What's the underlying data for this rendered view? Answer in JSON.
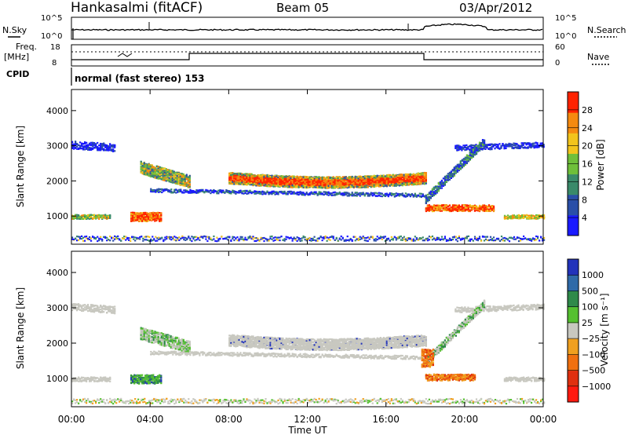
{
  "header": {
    "station": "Hankasalmi (fitACF)",
    "beam": "Beam 05",
    "date": "03/Apr/2012"
  },
  "noise_panel": {
    "left_label": "N.Sky",
    "right_label": "N.Search",
    "left_ticks": [
      "10^5",
      "10^0"
    ],
    "right_ticks": [
      "10^5",
      "10^0"
    ]
  },
  "freq_panel": {
    "left_label_1": "Freq.",
    "left_label_2": "[MHz]",
    "right_label": "Nave",
    "left_ticks": [
      "18",
      "8"
    ],
    "right_ticks": [
      "60",
      "0"
    ]
  },
  "cpid": {
    "label": "CPID",
    "mode_text": "normal (fast stereo) 153"
  },
  "chart_data": [
    {
      "type": "heatmap",
      "name": "power",
      "ylabel": "Slant Range [km]",
      "xlabel": "",
      "y_ticks": [
        "1000",
        "2000",
        "3000",
        "4000"
      ],
      "ylim": [
        200,
        4600
      ],
      "colorbar_label": "Power [dB]",
      "colorbar_ticks": [
        "4",
        "8",
        "12",
        "16",
        "20",
        "24",
        "28"
      ],
      "colors": [
        "#1a1aff",
        "#2a4fa8",
        "#3a8a6a",
        "#6fbf3a",
        "#f2c41c",
        "#f58a10",
        "#ff2200"
      ]
    },
    {
      "type": "heatmap",
      "name": "velocity",
      "ylabel": "Slant Range [km]",
      "xlabel": "Time UT",
      "x_ticks": [
        "00:00",
        "04:00",
        "08:00",
        "12:00",
        "16:00",
        "20:00",
        "00:00"
      ],
      "y_ticks": [
        "1000",
        "2000",
        "3000",
        "4000"
      ],
      "ylim": [
        200,
        4600
      ],
      "colorbar_label": "Velocity [m s⁻¹]",
      "colorbar_ticks": [
        "1000",
        "500",
        "100",
        "25",
        "−25",
        "−100",
        "−500",
        "−1000"
      ],
      "colors": [
        "#2233bb",
        "#2f6aa8",
        "#2f8a4a",
        "#55c030",
        "#c8c8c0",
        "#f0a020",
        "#f07010",
        "#e03010",
        "#ff1a10"
      ]
    }
  ]
}
